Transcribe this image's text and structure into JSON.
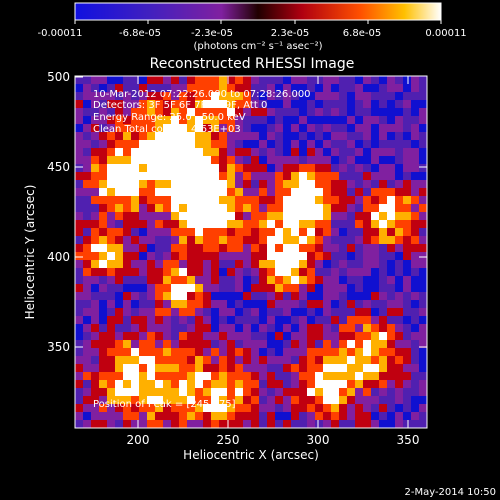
{
  "colorbar": {
    "tick_labels": [
      "-0.00011",
      "-6.8e-05",
      "-2.3e-05",
      "2.3e-05",
      "6.8e-05",
      "0.00011"
    ],
    "units": "(photons cm⁻² s⁻¹ asec⁻²)",
    "range": [
      -0.00011,
      0.00011
    ],
    "colors": [
      "#1010d0",
      "#5020b0",
      "#8020a0",
      "#c00010",
      "#ff4000",
      "#ffb000",
      "#ffffff"
    ]
  },
  "image": {
    "title": "Reconstructed RHESSI Image",
    "info_lines": [
      "10-Mar-2012 07:22:26.000 to 07:28:26.000",
      "Detectors: 3F 5F 6F 7F 8F 9F, Att 0",
      "Energy Range: 25.0 - 50.0 keV",
      "Clean     Total counts: 4.63E+03"
    ],
    "peak_label": "Position of Peak = [245,475]",
    "xlabel": "Heliocentric X (arcsec)",
    "ylabel": "Heliocentric Y (arcsec)",
    "x_range": [
      165,
      360
    ],
    "y_range": [
      305,
      500
    ],
    "x_ticks": [
      "200",
      "250",
      "300",
      "350"
    ],
    "y_ticks": [
      "350",
      "400",
      "450",
      "500"
    ],
    "footer_date": "2-May-2014 10:50"
  }
}
